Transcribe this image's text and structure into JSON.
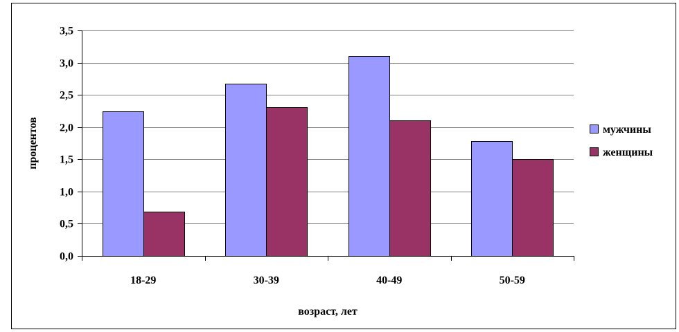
{
  "chart_data": {
    "type": "bar",
    "categories": [
      "18-29",
      "30-39",
      "40-49",
      "50-59"
    ],
    "series": [
      {
        "name": "мужчины",
        "values": [
          2.24,
          2.67,
          3.1,
          1.78
        ],
        "color": "#9999ff"
      },
      {
        "name": "женщины",
        "values": [
          0.69,
          2.31,
          2.1,
          1.5
        ],
        "color": "#993366"
      }
    ],
    "yticks": [
      "0,0",
      "0,5",
      "1,0",
      "1,5",
      "2,0",
      "2,5",
      "3,0",
      "3,5"
    ],
    "ylim": [
      0,
      3.5
    ],
    "ystep": 0.5,
    "xlabel": "возраст, лет",
    "ylabel": "процентов",
    "grid": true,
    "legend": "right"
  }
}
